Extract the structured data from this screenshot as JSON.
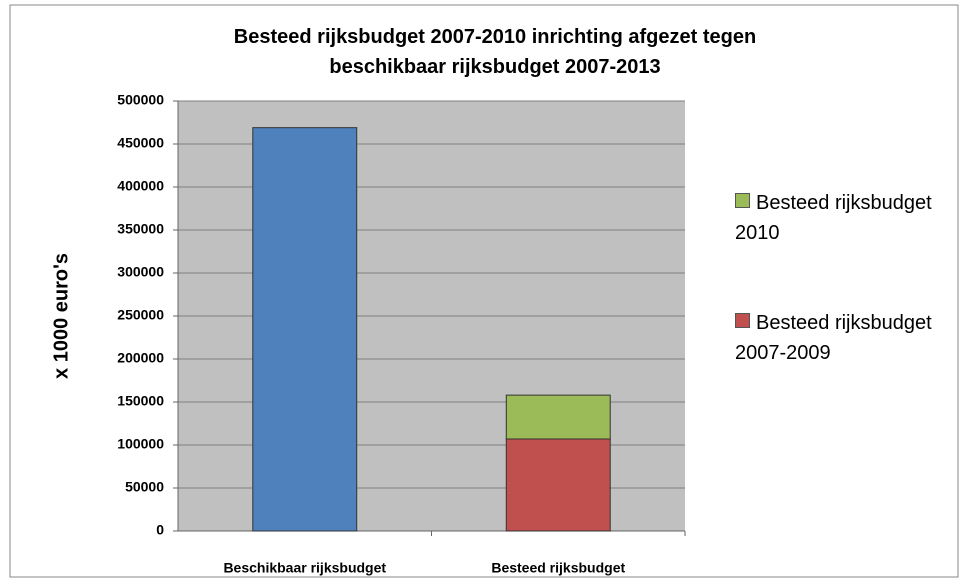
{
  "chart_data": {
    "type": "stacked_bar",
    "title": "Besteed rijksbudget 2007-2010 inrichting afgezet tegen beschikbaar rijksbudget 2007-2013",
    "y_label": "x 1000 euro's",
    "categories": [
      "Beschikbaar rijksbudget",
      "Besteed rijksbudget"
    ],
    "series": [
      {
        "color": "#4f81bd",
        "values": [
          469000,
          null
        ]
      },
      {
        "name": "Besteed rijksbudget 2007-2009",
        "color": "#c0504d",
        "values": [
          null,
          107000
        ]
      },
      {
        "name": "Besteed rijksbudget 2010",
        "color": "#9bbb59",
        "values": [
          null,
          51000
        ]
      }
    ],
    "ylim": [
      0,
      500000
    ],
    "yticks": [
      0,
      50000,
      100000,
      150000,
      200000,
      250000,
      300000,
      350000,
      400000,
      450000,
      500000
    ],
    "grid": true,
    "legend": "right"
  }
}
